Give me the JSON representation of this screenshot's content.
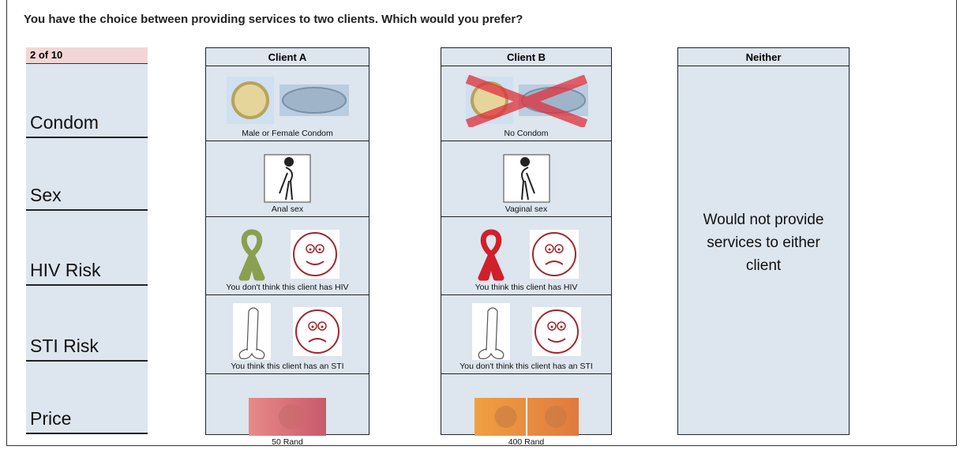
{
  "title": "You have the choice between providing services to two clients. Which would you prefer?",
  "counter": "2 of 10",
  "attributes": [
    "Condom",
    "Sex",
    "HIV Risk",
    "STI Risk",
    "Price"
  ],
  "options": [
    {
      "header": "Client A",
      "captions": [
        "Male or Female Condom",
        "Anal sex",
        "You don't think this client has HIV",
        "You think this client has an STI",
        "50 Rand"
      ]
    },
    {
      "header": "Client B",
      "captions": [
        "No Condom",
        "Vaginal sex",
        "You think this client has HIV",
        "You don't think this client has an STI",
        "400 Rand"
      ]
    }
  ],
  "neither": {
    "header": "Neither",
    "text": "Would not provide services to either client"
  }
}
